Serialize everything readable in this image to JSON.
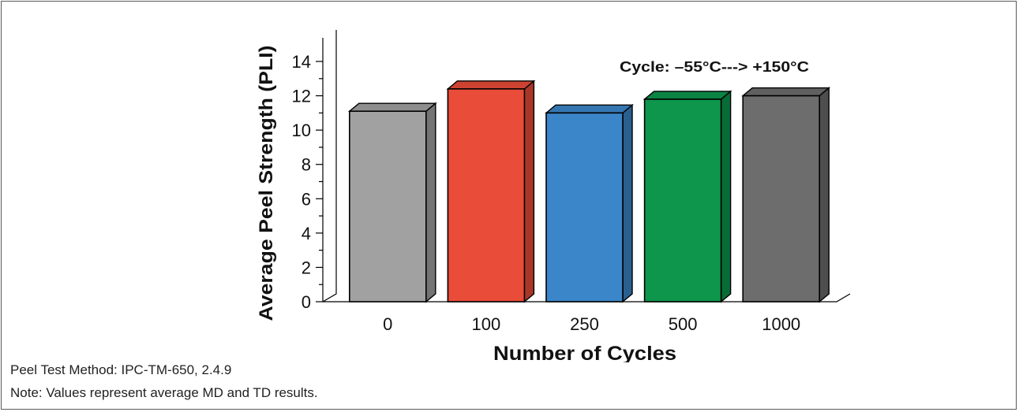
{
  "chart_data": {
    "type": "bar",
    "categories": [
      "0",
      "100",
      "250",
      "500",
      "1000"
    ],
    "values": [
      11.1,
      12.4,
      11.0,
      11.8,
      12.0
    ],
    "colors": [
      "#a1a1a1",
      "#e94c39",
      "#3b86c8",
      "#0d964c",
      "#6d6d6d"
    ],
    "xlabel": "Number of Cycles",
    "ylabel": "Average Peel Strength (PLI)",
    "ylim": [
      0,
      14
    ],
    "yticks": [
      "0",
      "2",
      "4",
      "6",
      "8",
      "10",
      "12",
      "14"
    ],
    "annotation": "Cycle:  –55°C---> +150°C",
    "grid": false,
    "style": "3d"
  },
  "notes": {
    "method": "Peel Test Method:  IPC-TM-650, 2.4.9",
    "values_note": "Note:  Values represent average MD and TD results."
  }
}
